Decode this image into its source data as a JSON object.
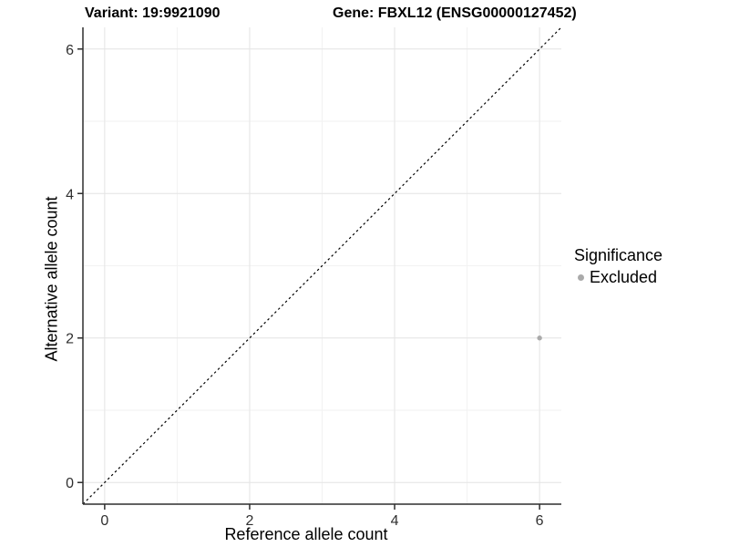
{
  "chart_data": {
    "type": "scatter",
    "title_left": "Variant: 19:9921090",
    "title_right": "Gene: FBXL12 (ENSG00000127452)",
    "xlabel": "Reference allele count",
    "ylabel": "Alternative allele count",
    "xlim": [
      -0.3,
      6.3
    ],
    "ylim": [
      -0.3,
      6.3
    ],
    "x_ticks": [
      0,
      2,
      4,
      6
    ],
    "y_ticks": [
      0,
      2,
      4,
      6
    ],
    "x_minor_ticks": [
      1,
      3,
      5
    ],
    "y_minor_ticks": [
      1,
      3,
      5
    ],
    "grid": "major+minor",
    "reference_line": {
      "slope": 1,
      "intercept": 0,
      "style": "dashed",
      "color": "#000000"
    },
    "series": [
      {
        "name": "Excluded",
        "color": "#aaaaaa",
        "points": [
          [
            6,
            2
          ]
        ]
      }
    ],
    "legend": {
      "title": "Significance",
      "position": "right",
      "entries": [
        {
          "label": "Excluded",
          "color": "#aaaaaa",
          "marker": "circle"
        }
      ]
    },
    "colors": {
      "axis": "#2e2e2e",
      "tick_label": "#303030",
      "grid_major": "#e4e4e4",
      "grid_minor": "#f2f2f2",
      "background": "#ffffff"
    }
  }
}
